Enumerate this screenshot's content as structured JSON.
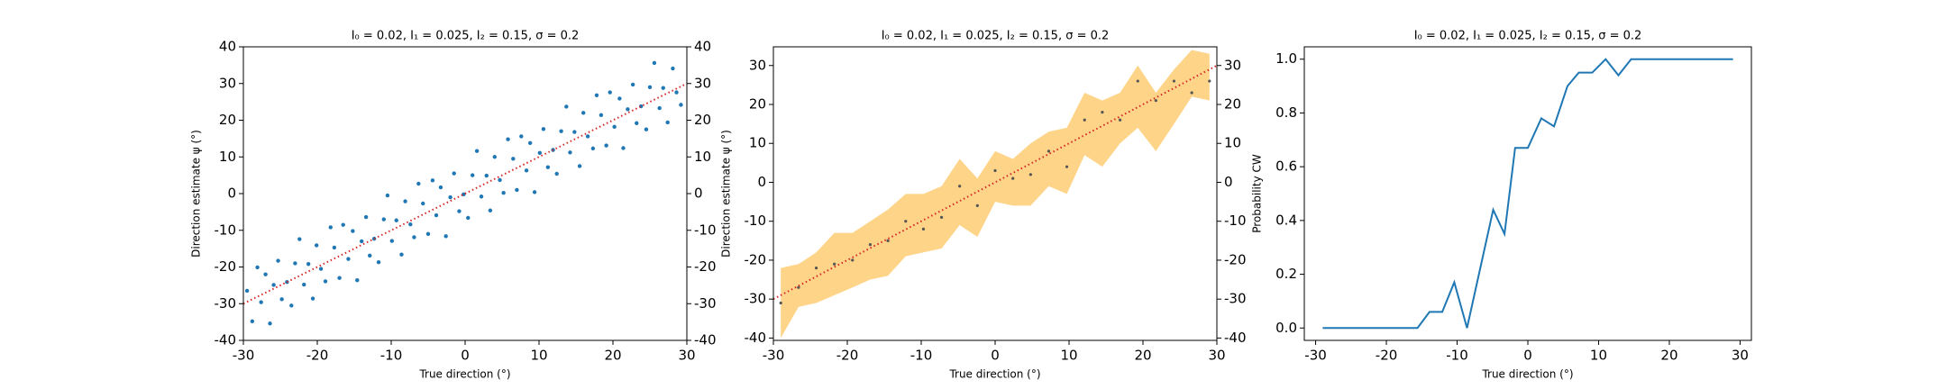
{
  "chart_data": [
    {
      "type": "scatter",
      "title": "I₀ = 0.02, I₁ = 0.025, I₂ = 0.15, σ = 0.2",
      "xlabel": "True direction (°)",
      "ylabel": "Direction estimate ψ (°)",
      "xlim": [
        -30,
        30
      ],
      "ylim": [
        -40,
        40
      ],
      "y2lim": [
        -40,
        40
      ],
      "xticks": [
        -30,
        -20,
        -10,
        0,
        10,
        20,
        30
      ],
      "yticks": [
        -40,
        -30,
        -20,
        -10,
        0,
        10,
        20,
        30,
        40
      ],
      "y2ticks": [
        -40,
        -30,
        -20,
        -10,
        0,
        10,
        20,
        30,
        40
      ],
      "points": {
        "color": "#1f77b4",
        "x": [
          -29.5,
          -28.8,
          -28.1,
          -27.6,
          -27.0,
          -26.4,
          -25.9,
          -25.3,
          -24.8,
          -24.1,
          -23.5,
          -23.0,
          -22.4,
          -21.8,
          -21.2,
          -20.6,
          -20.1,
          -19.5,
          -18.9,
          -18.2,
          -17.7,
          -17.0,
          -16.5,
          -15.8,
          -15.2,
          -14.6,
          -14.0,
          -13.4,
          -12.9,
          -12.3,
          -11.7,
          -11.0,
          -10.5,
          -9.9,
          -9.3,
          -8.6,
          -8.1,
          -7.4,
          -6.9,
          -6.3,
          -5.7,
          -5.0,
          -4.4,
          -3.9,
          -3.3,
          -2.6,
          -2.0,
          -1.5,
          -0.8,
          -0.2,
          0.4,
          1.0,
          1.6,
          2.2,
          2.9,
          3.4,
          4.0,
          4.7,
          5.2,
          5.8,
          6.5,
          7.0,
          7.6,
          8.3,
          8.8,
          9.4,
          10.1,
          10.6,
          11.2,
          11.9,
          12.4,
          13.0,
          13.7,
          14.2,
          14.8,
          15.5,
          16.0,
          16.6,
          17.3,
          17.8,
          18.4,
          19.1,
          19.6,
          20.2,
          20.9,
          21.4,
          22.0,
          22.7,
          23.2,
          23.8,
          24.5,
          25.0,
          25.6,
          26.3,
          26.8,
          27.4,
          28.1,
          28.6,
          29.2
        ],
        "values": [
          -26.5,
          -34.8,
          -20.1,
          -29.6,
          -22,
          -35.4,
          -24.9,
          -18.3,
          -28.8,
          -24.1,
          -30.5,
          -19,
          -12.4,
          -24.8,
          -19.2,
          -28.6,
          -14.1,
          -20.5,
          -23.9,
          -9.2,
          -14.7,
          -23,
          -8.5,
          -17.8,
          -10.2,
          -23.6,
          -13,
          -6.4,
          -16.9,
          -12.3,
          -18.7,
          -7,
          -0.5,
          -12.9,
          -7.3,
          -16.6,
          -2.1,
          -8.4,
          -11.9,
          2.7,
          -2.7,
          -11,
          3.6,
          -5.9,
          1.7,
          -11.6,
          -1,
          5.5,
          -4.8,
          -0.2,
          -6.6,
          5,
          11.6,
          -0.8,
          4.9,
          -4.6,
          10,
          3.7,
          0.2,
          14.8,
          9.5,
          1,
          15.6,
          6.3,
          13.8,
          0.4,
          11.1,
          17.6,
          7.2,
          11.9,
          5.4,
          17,
          23.7,
          11.2,
          16.8,
          7.5,
          22,
          15.6,
          12.3,
          26.8,
          21.4,
          13.1,
          27.6,
          18.2,
          25.9,
          12.4,
          23,
          29.7,
          19.2,
          23.8,
          17.5,
          29,
          35.6,
          23.3,
          28.8,
          19.4,
          34.1,
          27.6,
          24.2
        ]
      },
      "reference": {
        "color": "#d62728",
        "x": [
          -30,
          30
        ],
        "values": [
          -30,
          30
        ]
      }
    },
    {
      "type": "band",
      "title": "I₀ = 0.02, I₁ = 0.025, I₂ = 0.15, σ = 0.2",
      "xlabel": "True direction (°)",
      "ylabel": "Direction estimate ψ (°)",
      "xlim": [
        -30,
        30
      ],
      "ylim": [
        -40.6,
        34.8
      ],
      "y2lim": [
        -40.6,
        34.8
      ],
      "xticks": [
        -30,
        -20,
        -10,
        0,
        10,
        20,
        30
      ],
      "yticks": [
        -40,
        -30,
        -20,
        -10,
        0,
        10,
        20,
        30
      ],
      "y2ticks": [
        -40,
        -30,
        -20,
        -10,
        0,
        10,
        20,
        30
      ],
      "band": {
        "color": "#fdc560",
        "x": [
          -29,
          -26.6,
          -24.2,
          -21.75,
          -19.3,
          -16.9,
          -14.5,
          -12.1,
          -9.7,
          -7.25,
          -4.8,
          -2.4,
          0,
          2.4,
          4.8,
          7.25,
          9.7,
          12.1,
          14.5,
          16.9,
          19.3,
          21.75,
          24.2,
          26.6,
          29
        ],
        "lower": [
          -40,
          -32,
          -31,
          -29,
          -27,
          -25,
          -24,
          -19,
          -18,
          -17,
          -11,
          -14,
          -5,
          -6,
          -6,
          -1,
          -3,
          7,
          4,
          10,
          14,
          8,
          15,
          22,
          21
        ],
        "upper": [
          -22,
          -21,
          -18,
          -13,
          -13,
          -10,
          -7,
          -3,
          -3,
          -1,
          6,
          1,
          8,
          6,
          10,
          13,
          14,
          23,
          21,
          23,
          30,
          23,
          29,
          34,
          33
        ]
      },
      "points": {
        "color": "#555555",
        "x": [
          -29,
          -26.6,
          -24.2,
          -21.75,
          -19.3,
          -16.9,
          -14.5,
          -12.1,
          -9.7,
          -7.25,
          -4.8,
          -2.4,
          0,
          2.4,
          4.8,
          7.25,
          9.7,
          12.1,
          14.5,
          16.9,
          19.3,
          21.75,
          24.2,
          26.6,
          29
        ],
        "values": [
          -31,
          -27,
          -22,
          -21,
          -20,
          -16,
          -15,
          -10,
          -12,
          -9,
          -1,
          -6,
          3,
          1,
          2,
          8,
          4,
          16,
          18,
          16,
          26,
          21,
          26,
          23,
          26
        ]
      },
      "reference": {
        "color": "#d62728",
        "x": [
          -30,
          30
        ],
        "values": [
          -30,
          30
        ]
      }
    },
    {
      "type": "line",
      "title": "I₀ = 0.02, I₁ = 0.025, I₂ = 0.15, σ = 0.2",
      "xlabel": "True direction (°)",
      "ylabel": "Probability CW",
      "xlim": [
        -31.6,
        31.6
      ],
      "ylim": [
        -0.046,
        1.046
      ],
      "xticks": [
        -30,
        -20,
        -10,
        0,
        10,
        20,
        30
      ],
      "yticks": [
        {
          "value": 0,
          "label": "0.0"
        },
        0.2,
        0.4,
        0.6,
        0.8,
        {
          "value": 1,
          "label": "1.0"
        }
      ],
      "color": "#1f77b4",
      "x": [
        -29,
        -15.6,
        -13.9,
        -12.1,
        -10.4,
        -8.6,
        -4.9,
        -3.3,
        -1.8,
        0,
        1.9,
        3.7,
        5.6,
        7.2,
        9.1,
        11,
        12.8,
        14.6,
        29
      ],
      "values": [
        0,
        0,
        0.06,
        0.06,
        0.17,
        0,
        0.44,
        0.35,
        0.67,
        0.67,
        0.78,
        0.75,
        0.9,
        0.95,
        0.95,
        1.0,
        0.94,
        1.0,
        1.0
      ]
    }
  ]
}
